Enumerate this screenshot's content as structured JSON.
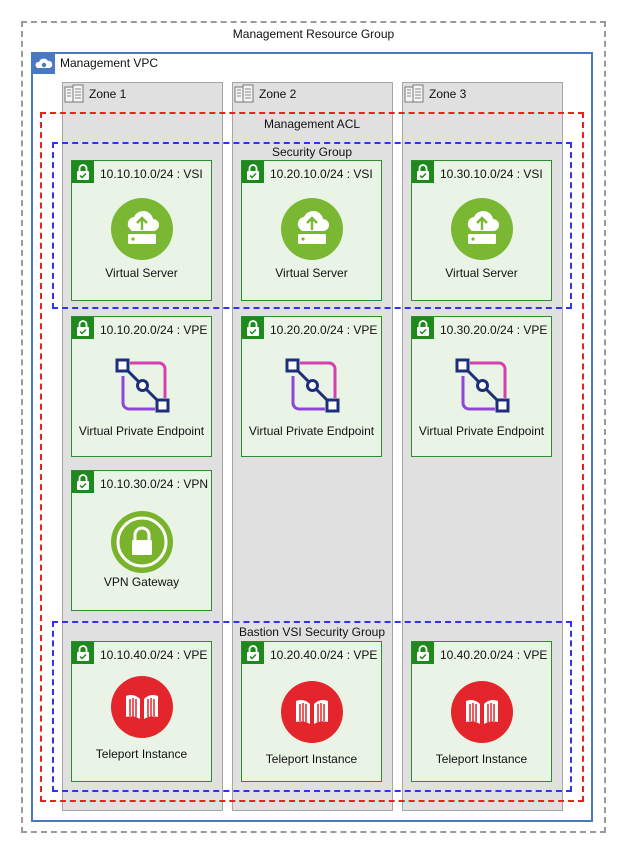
{
  "resource_group": {
    "label": "Management Resource Group"
  },
  "vpc": {
    "label": "Management VPC",
    "icon": "vpc-cloud-icon"
  },
  "zones": [
    {
      "label": "Zone 1",
      "icon": "zone-building-icon"
    },
    {
      "label": "Zone 2",
      "icon": "zone-building-icon"
    },
    {
      "label": "Zone 3",
      "icon": "zone-building-icon"
    }
  ],
  "acl": {
    "label": "Management ACL",
    "color": "#e8221c"
  },
  "security_group": {
    "label": "Security Group",
    "color": "#3232e6"
  },
  "bastion_sg": {
    "label": "Bastion VSI Security Group",
    "color": "#3232e6"
  },
  "subnets": {
    "z1_vsi": {
      "label": "10.10.10.0/24 : VSI",
      "service": "Virtual Server"
    },
    "z2_vsi": {
      "label": "10.20.10.0/24 : VSI",
      "service": "Virtual Server"
    },
    "z3_vsi": {
      "label": "10.30.10.0/24 : VSI",
      "service": "Virtual Server"
    },
    "z1_vpe": {
      "label": "10.10.20.0/24 : VPE",
      "service": "Virtual Private Endpoint"
    },
    "z2_vpe": {
      "label": "10.20.20.0/24 : VPE",
      "service": "Virtual Private Endpoint"
    },
    "z3_vpe": {
      "label": "10.30.20.0/24 : VPE",
      "service": "Virtual Private Endpoint"
    },
    "z1_vpn": {
      "label": "10.10.30.0/24 : VPN",
      "service": "VPN Gateway"
    },
    "z1_bastion": {
      "label": "10.10.40.0/24 : VPE",
      "service": "Teleport Instance"
    },
    "z2_bastion": {
      "label": "10.20.40.0/24 : VPE",
      "service": "Teleport Instance"
    },
    "z3_bastion": {
      "label": "10.40.20.0/24 : VPE",
      "service": "Teleport Instance"
    }
  },
  "colors": {
    "subnet_green": "#1e8a1e",
    "vsi_green": "#7ab833",
    "vpn_green": "#79b32b",
    "teleport_red": "#e4262c",
    "vpe_blue": "#1d2f7a",
    "vpe_purple": "#a046d6",
    "vpc_border": "#4a78c2"
  }
}
